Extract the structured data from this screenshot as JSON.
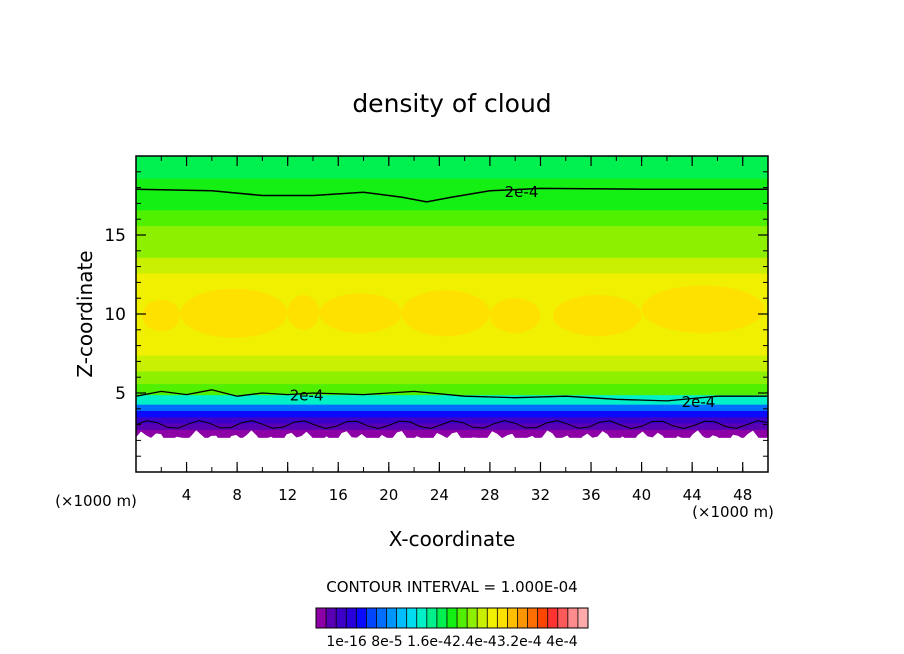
{
  "chart_data": {
    "type": "heatmap",
    "title": "density of cloud",
    "xlabel": "X-coordinate",
    "ylabel": "Z-coordinate",
    "x_unit_left": "(×1000 m)",
    "x_unit_right": "(×1000 m)",
    "xlim": [
      0,
      50
    ],
    "ylim": [
      0,
      20
    ],
    "x_ticks": [
      4,
      8,
      12,
      16,
      20,
      24,
      28,
      32,
      36,
      40,
      44,
      48
    ],
    "y_ticks": [
      5,
      10,
      15
    ],
    "contour_interval_text": "CONTOUR INTERVAL = 1.000E-04",
    "contour_line_labels": [
      {
        "text": "2e-4",
        "x": 30.5,
        "z": 17.8
      },
      {
        "text": "2e-4",
        "x": 13.5,
        "z": 4.9
      },
      {
        "text": "2e-4",
        "x": 44.5,
        "z": 4.5
      }
    ],
    "colorbar": {
      "labels": [
        "1e-16",
        "8e-5",
        "1.6e-4",
        "2.4e-4",
        "3.2e-4",
        "4e-4"
      ],
      "label_text": "1e-16 8e-5 1.6e-42.4e-43.2e-4 4e-4",
      "colors": [
        "#8c00a5",
        "#5a00b4",
        "#3c00c8",
        "#2800dc",
        "#0a0aff",
        "#0046ff",
        "#006eff",
        "#0096ff",
        "#00beff",
        "#00dcf0",
        "#00f0c8",
        "#00f08c",
        "#00f050",
        "#14f014",
        "#50f000",
        "#8cf000",
        "#c8f000",
        "#f0f000",
        "#ffe100",
        "#ffbe00",
        "#ff9600",
        "#ff6e00",
        "#ff4600",
        "#ff3232",
        "#ff5a5a",
        "#ff8c8c",
        "#ffaaaa"
      ]
    },
    "profile_note": "layered field mostly uniform in x",
    "layers": [
      {
        "z0": 0.0,
        "z1": 2.2,
        "value": null
      },
      {
        "z0": 2.2,
        "z1": 2.7,
        "value": 5e-06
      },
      {
        "z0": 2.7,
        "z1": 3.1,
        "value": 2e-05
      },
      {
        "z0": 3.1,
        "z1": 3.5,
        "value": 4e-05
      },
      {
        "z0": 3.5,
        "z1": 3.9,
        "value": 7e-05
      },
      {
        "z0": 3.9,
        "z1": 4.3,
        "value": 0.0001
      },
      {
        "z0": 4.3,
        "z1": 4.9,
        "value": 0.00015
      },
      {
        "z0": 4.9,
        "z1": 5.6,
        "value": 0.00021
      },
      {
        "z0": 5.6,
        "z1": 6.4,
        "value": 0.00023
      },
      {
        "z0": 6.4,
        "z1": 7.4,
        "value": 0.000245
      },
      {
        "z0": 7.4,
        "z1": 8.5,
        "value": 0.000255
      },
      {
        "z0": 8.5,
        "z1": 11.6,
        "value": 0.000265
      },
      {
        "z0": 11.6,
        "z1": 12.6,
        "value": 0.000255
      },
      {
        "z0": 12.6,
        "z1": 13.6,
        "value": 0.000245
      },
      {
        "z0": 13.6,
        "z1": 14.6,
        "value": 0.000235
      },
      {
        "z0": 14.6,
        "z1": 15.6,
        "value": 0.000225
      },
      {
        "z0": 15.6,
        "z1": 16.6,
        "value": 0.000215
      },
      {
        "z0": 16.6,
        "z1": 17.6,
        "value": 0.000205
      },
      {
        "z0": 17.6,
        "z1": 18.6,
        "value": 0.000195
      },
      {
        "z0": 18.6,
        "z1": 20.0,
        "value": 0.000185
      }
    ],
    "orange_blobs": [
      {
        "x0": 0.5,
        "x1": 3.5,
        "z0": 8.9,
        "z1": 10.9
      },
      {
        "x0": 3.5,
        "x1": 12.0,
        "z0": 8.5,
        "z1": 11.6
      },
      {
        "x0": 12.0,
        "x1": 14.5,
        "z0": 9.0,
        "z1": 11.2
      },
      {
        "x0": 14.5,
        "x1": 21.0,
        "z0": 8.8,
        "z1": 11.3
      },
      {
        "x0": 21.0,
        "x1": 28.0,
        "z0": 8.6,
        "z1": 11.5
      },
      {
        "x0": 28.0,
        "x1": 32.0,
        "z0": 8.8,
        "z1": 11.0
      },
      {
        "x0": 33.0,
        "x1": 40.0,
        "z0": 8.6,
        "z1": 11.2
      },
      {
        "x0": 40.0,
        "x1": 49.7,
        "z0": 8.8,
        "z1": 11.8
      }
    ],
    "upper_contour_2e4": [
      [
        0,
        17.9
      ],
      [
        6,
        17.8
      ],
      [
        10,
        17.5
      ],
      [
        14,
        17.5
      ],
      [
        18,
        17.7
      ],
      [
        21,
        17.4
      ],
      [
        23,
        17.1
      ],
      [
        25,
        17.4
      ],
      [
        28,
        17.8
      ],
      [
        32,
        17.95
      ],
      [
        40,
        17.9
      ],
      [
        50,
        17.9
      ]
    ],
    "lower_contour_2e4": [
      [
        0,
        4.8
      ],
      [
        2,
        5.1
      ],
      [
        4,
        4.9
      ],
      [
        6,
        5.2
      ],
      [
        8,
        4.8
      ],
      [
        10,
        5.0
      ],
      [
        12,
        4.9
      ],
      [
        14,
        5.0
      ],
      [
        18,
        4.9
      ],
      [
        22,
        5.1
      ],
      [
        26,
        4.8
      ],
      [
        30,
        4.7
      ],
      [
        34,
        4.8
      ],
      [
        38,
        4.6
      ],
      [
        42,
        4.5
      ],
      [
        46,
        4.8
      ],
      [
        50,
        4.8
      ]
    ]
  }
}
